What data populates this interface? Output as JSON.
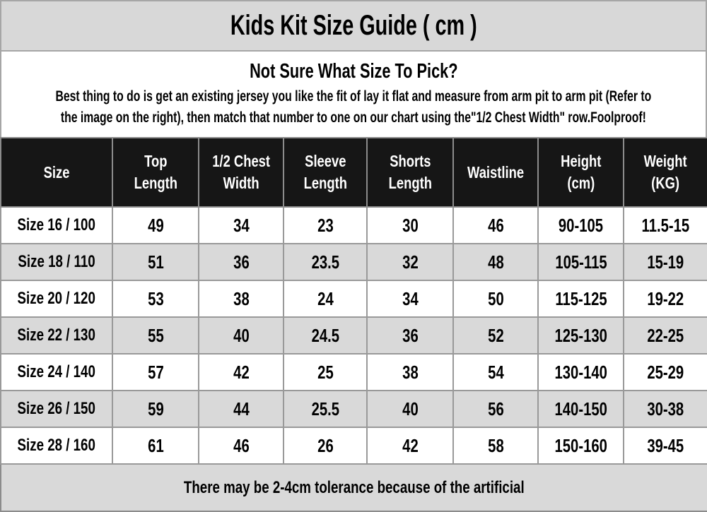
{
  "title": "Kids Kit Size Guide ( cm )",
  "intro": {
    "heading": "Not Sure What Size To Pick?",
    "body": "Best thing to do is get an existing jersey you like the fit of lay it flat and measure from arm pit to arm pit (Refer to\nthe image on the right), then match that number to one on our chart using the\"1/2 Chest Width\" row.Foolproof!"
  },
  "table": {
    "columns": [
      "Size",
      "Top\nLength",
      "1/2 Chest\nWidth",
      "Sleeve\nLength",
      "Shorts\nLength",
      "Waistline",
      "Height\n(cm)",
      "Weight\n(KG)"
    ],
    "rows": [
      [
        "Size 16 / 100",
        "49",
        "34",
        "23",
        "30",
        "46",
        "90-105",
        "11.5-15"
      ],
      [
        "Size 18 / 110",
        "51",
        "36",
        "23.5",
        "32",
        "48",
        "105-115",
        "15-19"
      ],
      [
        "Size 20 / 120",
        "53",
        "38",
        "24",
        "34",
        "50",
        "115-125",
        "19-22"
      ],
      [
        "Size 22 / 130",
        "55",
        "40",
        "24.5",
        "36",
        "52",
        "125-130",
        "22-25"
      ],
      [
        "Size 24 / 140",
        "57",
        "42",
        "25",
        "38",
        "54",
        "130-140",
        "25-29"
      ],
      [
        "Size 26 / 150",
        "59",
        "44",
        "25.5",
        "40",
        "56",
        "140-150",
        "30-38"
      ],
      [
        "Size 28 / 160",
        "61",
        "46",
        "26",
        "42",
        "58",
        "150-160",
        "39-45"
      ]
    ],
    "footer_note": "There may be 2-4cm tolerance because of the artificial"
  },
  "colors": {
    "header_bg": "#161616",
    "header_text": "#ffffff",
    "alt_row_bg": "#d9d9d9",
    "title_bar_bg": "#d8d8d8",
    "border": "#8c8c8c",
    "text": "#000000"
  }
}
